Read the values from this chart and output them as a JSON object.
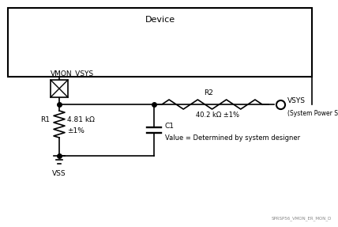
{
  "bg_color": "#ffffff",
  "line_color": "#000000",
  "device_label": "Device",
  "vmon_label": "VMON_VSYS",
  "r1_label": "R1",
  "r1_value1": "4.81 kΩ",
  "r1_value2": "±1%",
  "r2_label": "R2",
  "r2_value": "40.2 kΩ ±1%",
  "c1_label": "C1",
  "c1_value": "Value = Determined by system designer",
  "vsys_label": "VSYS",
  "vsys_sublabel": "(System Power Supply)",
  "vss_label": "VSS",
  "watermark": "SPRSP56_VMON_ER_MON_D"
}
